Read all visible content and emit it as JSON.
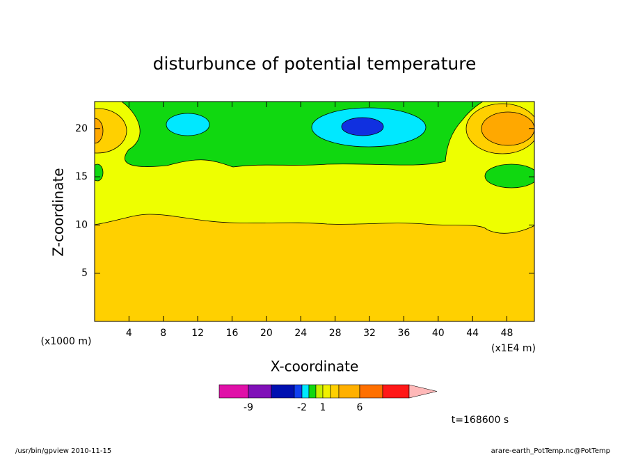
{
  "chart_data": {
    "type": "contour",
    "title": "disturbunce of potential temperature",
    "x_label": "X-coordinate",
    "y_label": "Z-coordinate",
    "x_unit_note": "(x1E4 m)",
    "y_unit_note": "(x1000 m)",
    "xlim": [
      0,
      51.2
    ],
    "xticks": [
      4,
      8,
      12,
      16,
      20,
      24,
      28,
      32,
      36,
      40,
      44,
      48
    ],
    "ylim": [
      0,
      22.8
    ],
    "yticks": [
      5,
      10,
      15,
      20
    ],
    "colorbar": {
      "levels": [
        -12,
        -9,
        -6,
        -3,
        -2,
        -1,
        0,
        1,
        2,
        3,
        6,
        9,
        12
      ],
      "colors": [
        "#e010a8",
        "#8010b8",
        "#0010b0",
        "#1040f0",
        "#00e8ff",
        "#10d810",
        "#c8f000",
        "#f0f000",
        "#ffd000",
        "#ffb000",
        "#ff7000",
        "#ff1818"
      ],
      "over_color": "#ffb8b8",
      "ticks": [
        -9,
        -2,
        1,
        6
      ]
    },
    "time_label": "t=168600 s",
    "footer_left": "/usr/bin/gpview   2010-11-15",
    "footer_right": "arare-earth_PotTemp.nc@PotTemp"
  }
}
